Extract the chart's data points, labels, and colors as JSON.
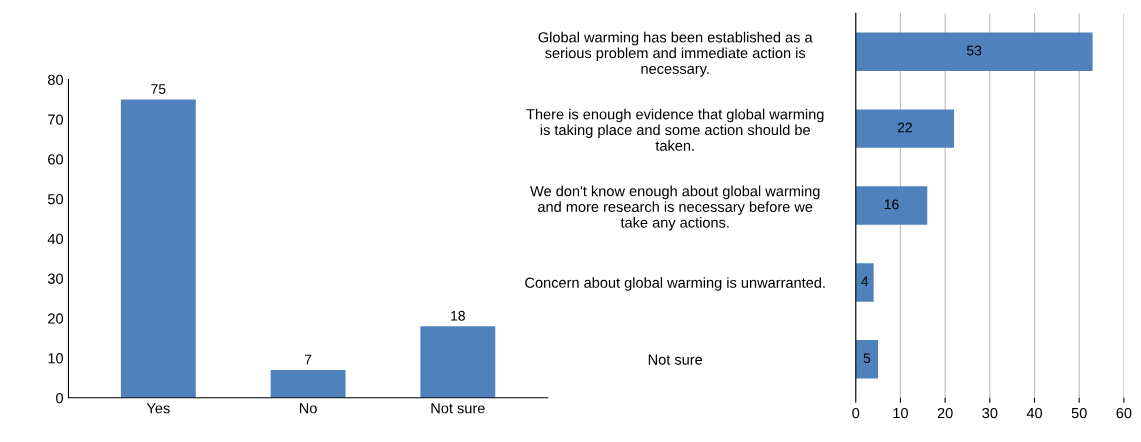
{
  "chart_data": [
    {
      "type": "bar",
      "categories": [
        "Yes",
        "No",
        "Not sure"
      ],
      "values": [
        75,
        7,
        18
      ],
      "color": "#4f81bd",
      "ylim": [
        0,
        80
      ],
      "yticks": [
        0,
        10,
        20,
        30,
        40,
        50,
        60,
        70,
        80
      ],
      "data_labels": true,
      "grid": false
    },
    {
      "type": "bar",
      "orientation": "horizontal",
      "categories": [
        "Global warming has been established as a serious problem and immediate action is necessary.",
        "There is enough evidence that global warming is taking place and some action should be taken.",
        "We don't know enough about global warming and more research is necessary before we take any actions.",
        "Concern about global warming is unwarranted.",
        "Not sure"
      ],
      "values": [
        53,
        22,
        16,
        4,
        5
      ],
      "color": "#4f81bd",
      "xlim": [
        0,
        60
      ],
      "xticks": [
        0,
        10,
        20,
        30,
        40,
        50,
        60
      ],
      "data_labels": true,
      "grid": "x"
    }
  ]
}
